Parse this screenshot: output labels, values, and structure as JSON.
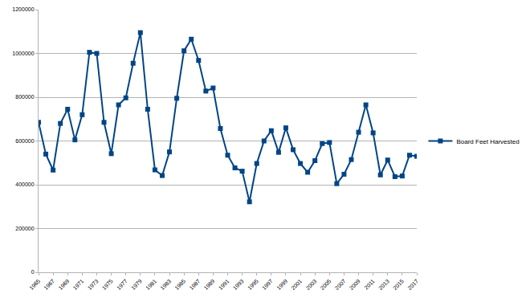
{
  "chart_data": {
    "type": "line",
    "x": [
      1965,
      1966,
      1967,
      1968,
      1969,
      1970,
      1971,
      1972,
      1973,
      1974,
      1975,
      1976,
      1977,
      1978,
      1979,
      1980,
      1981,
      1982,
      1983,
      1984,
      1985,
      1986,
      1987,
      1988,
      1989,
      1990,
      1991,
      1992,
      1993,
      1994,
      1995,
      1996,
      1997,
      1998,
      1999,
      2000,
      2001,
      2002,
      2003,
      2004,
      2005,
      2006,
      2007,
      2008,
      2009,
      2010,
      2011,
      2012,
      2013,
      2014,
      2015,
      2016,
      2017
    ],
    "series": [
      {
        "name": "Board Feet Harvested",
        "color": "#004586",
        "marker": "square",
        "values": [
          685000,
          540000,
          467000,
          680000,
          745000,
          605000,
          720000,
          1005000,
          1000000,
          685000,
          542000,
          765000,
          797000,
          955000,
          1095000,
          745000,
          468000,
          442000,
          550000,
          795000,
          1012000,
          1065000,
          968000,
          828000,
          842000,
          657000,
          535000,
          477000,
          462000,
          322000,
          497000,
          600000,
          647000,
          548000,
          660000,
          560000,
          497000,
          457000,
          510000,
          588000,
          593000,
          405000,
          448000,
          515000,
          640000,
          765000,
          637000,
          445000,
          513000,
          437000,
          440000,
          535000,
          530000
        ]
      }
    ],
    "xlim": [
      1965,
      2017
    ],
    "xticks": [
      1965,
      1967,
      1969,
      1971,
      1973,
      1975,
      1977,
      1979,
      1981,
      1983,
      1985,
      1987,
      1989,
      1991,
      1993,
      1995,
      1997,
      1999,
      2001,
      2003,
      2005,
      2007,
      2009,
      2011,
      2013,
      2015,
      2017
    ],
    "ylim": [
      0,
      1200000
    ],
    "yticks": [
      0,
      200000,
      400000,
      600000,
      800000,
      1000000,
      1200000
    ],
    "grid": true,
    "legend": "right"
  }
}
